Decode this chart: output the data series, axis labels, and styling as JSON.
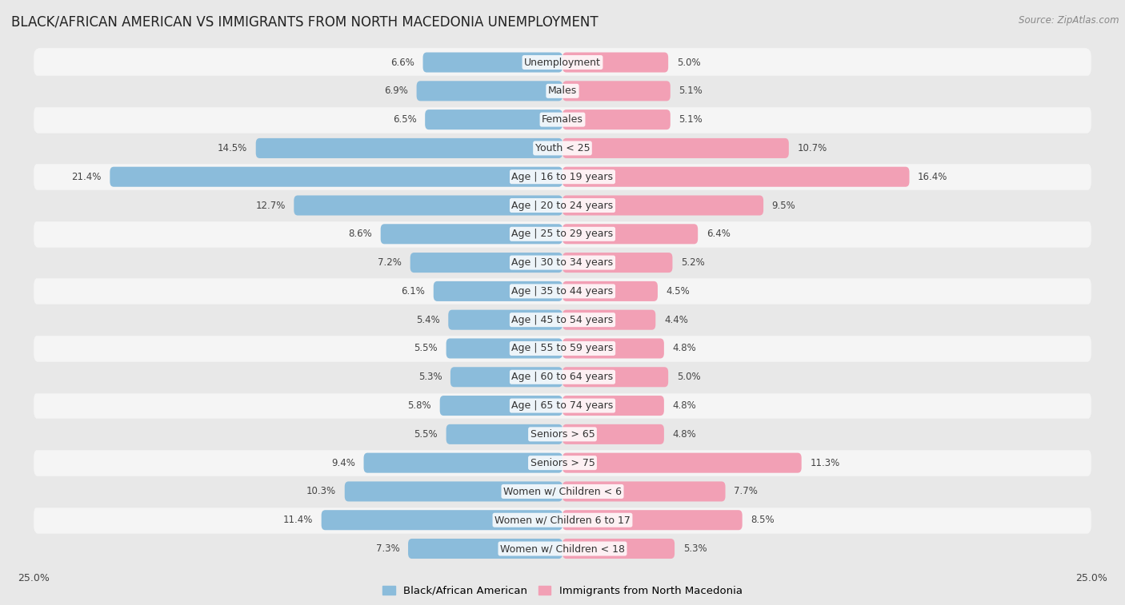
{
  "title": "BLACK/AFRICAN AMERICAN VS IMMIGRANTS FROM NORTH MACEDONIA UNEMPLOYMENT",
  "source": "Source: ZipAtlas.com",
  "categories": [
    "Unemployment",
    "Males",
    "Females",
    "Youth < 25",
    "Age | 16 to 19 years",
    "Age | 20 to 24 years",
    "Age | 25 to 29 years",
    "Age | 30 to 34 years",
    "Age | 35 to 44 years",
    "Age | 45 to 54 years",
    "Age | 55 to 59 years",
    "Age | 60 to 64 years",
    "Age | 65 to 74 years",
    "Seniors > 65",
    "Seniors > 75",
    "Women w/ Children < 6",
    "Women w/ Children 6 to 17",
    "Women w/ Children < 18"
  ],
  "left_values": [
    6.6,
    6.9,
    6.5,
    14.5,
    21.4,
    12.7,
    8.6,
    7.2,
    6.1,
    5.4,
    5.5,
    5.3,
    5.8,
    5.5,
    9.4,
    10.3,
    11.4,
    7.3
  ],
  "right_values": [
    5.0,
    5.1,
    5.1,
    10.7,
    16.4,
    9.5,
    6.4,
    5.2,
    4.5,
    4.4,
    4.8,
    5.0,
    4.8,
    4.8,
    11.3,
    7.7,
    8.5,
    5.3
  ],
  "left_color": "#8bbcdb",
  "right_color": "#f2a0b5",
  "left_label": "Black/African American",
  "right_label": "Immigrants from North Macedonia",
  "xlim": 25.0,
  "background_color": "#e8e8e8",
  "row_light_color": "#f5f5f5",
  "row_dark_color": "#e8e8e8",
  "title_fontsize": 12,
  "label_fontsize": 9,
  "value_fontsize": 8.5,
  "tick_fontsize": 9
}
